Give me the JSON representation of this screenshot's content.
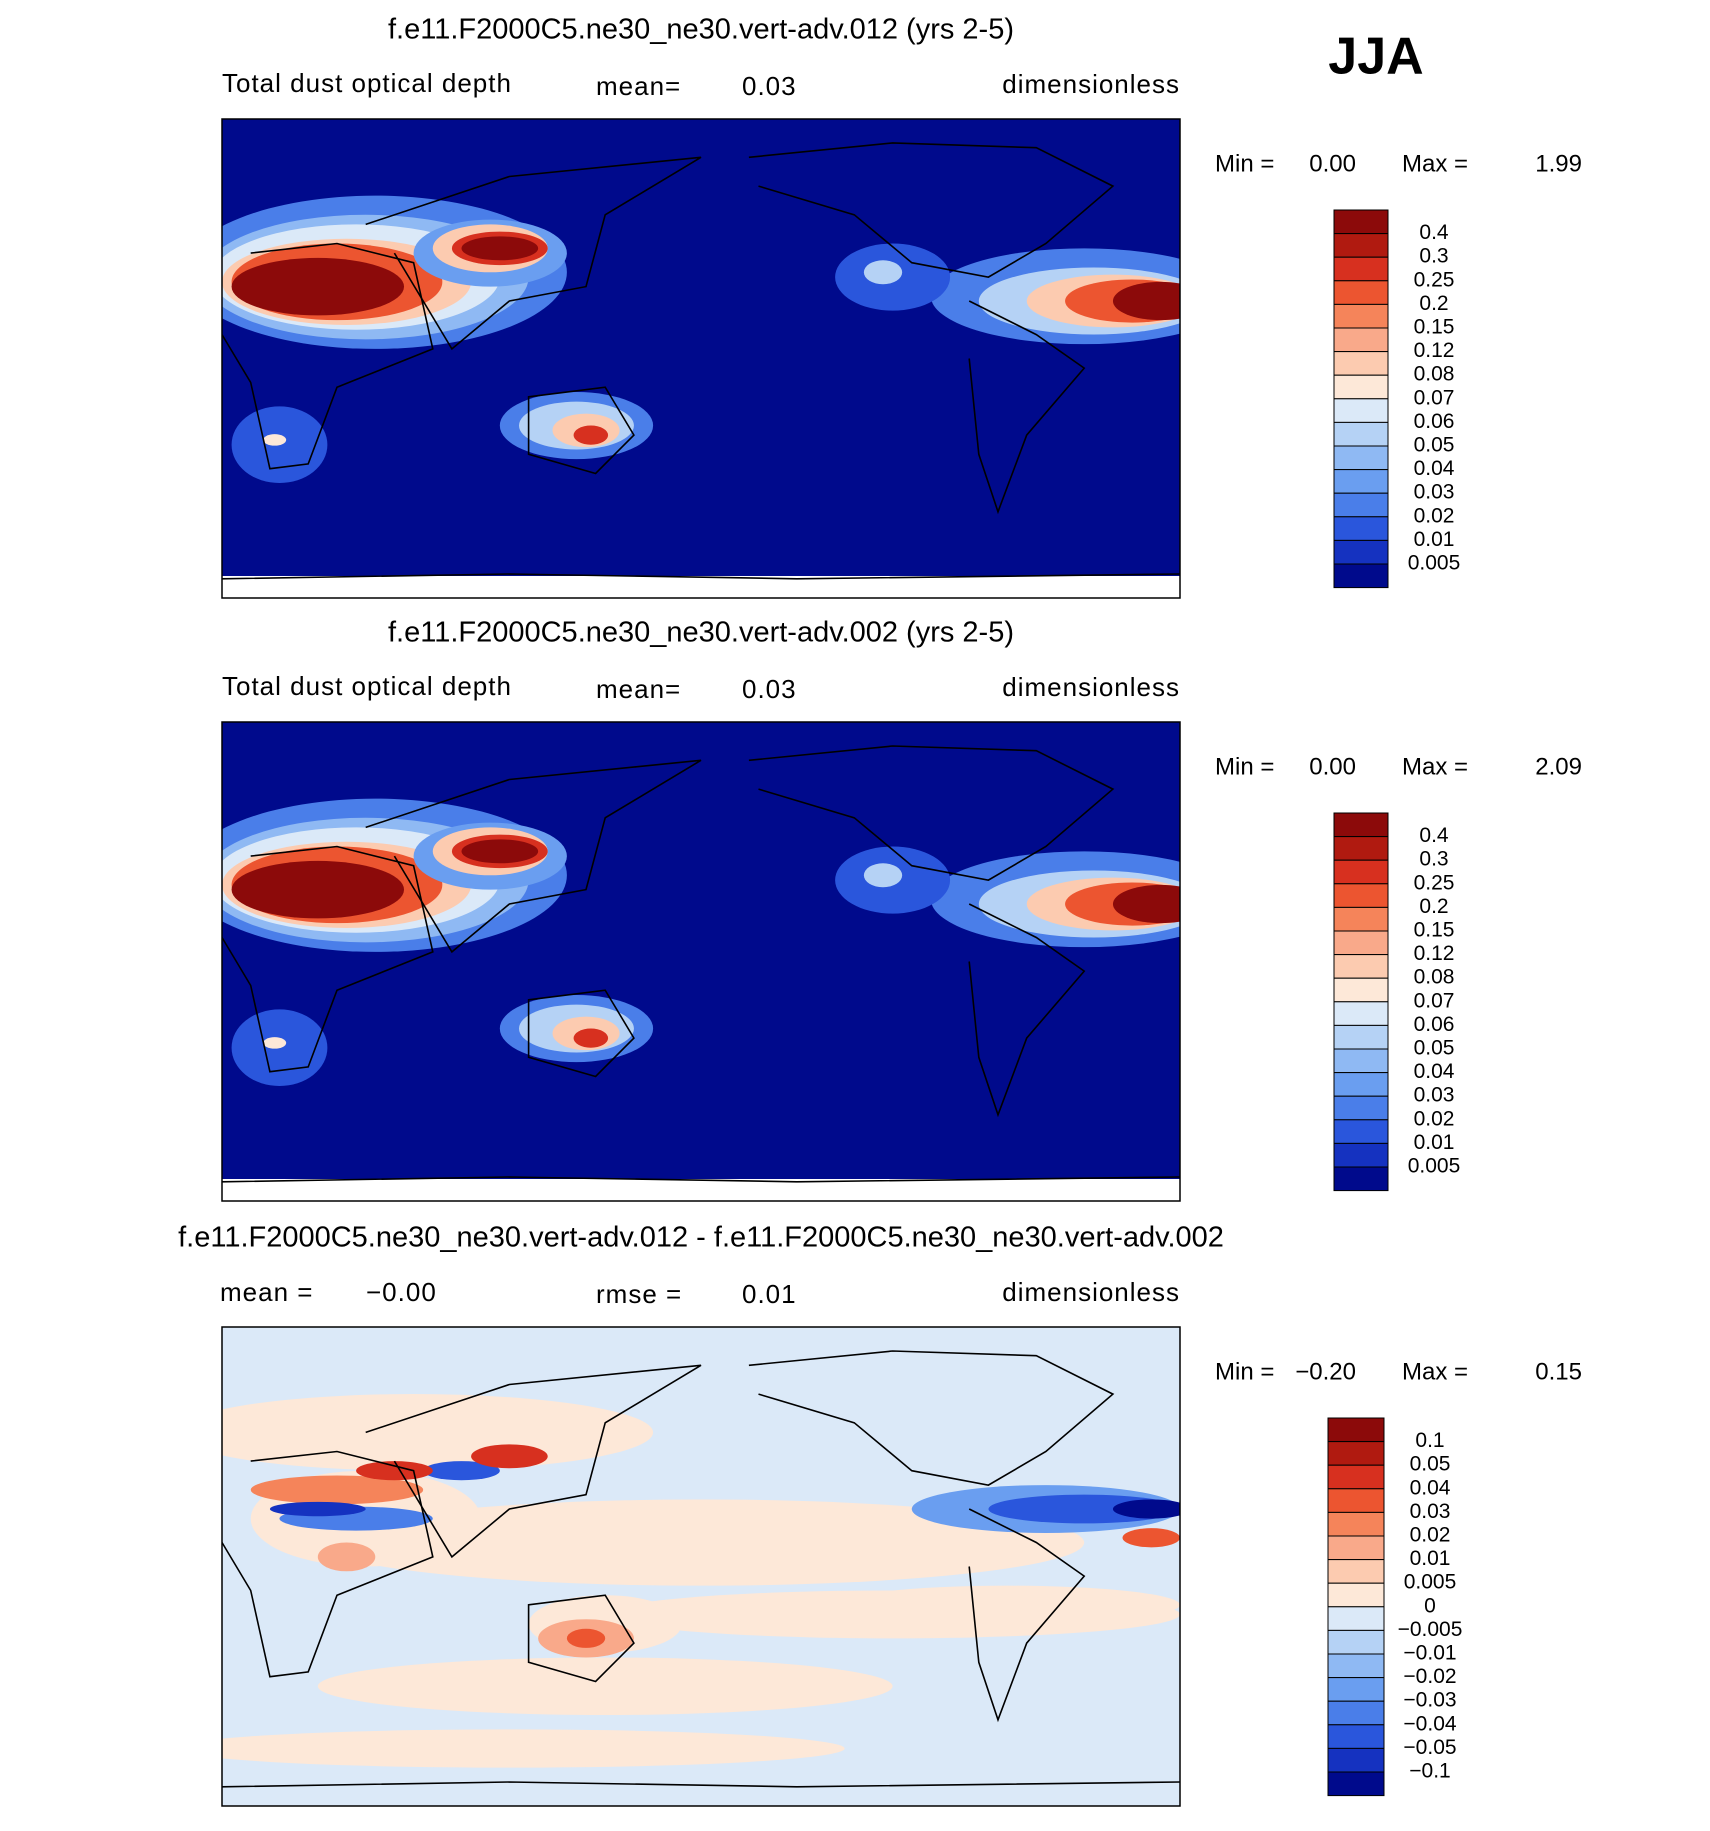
{
  "season": "JJA",
  "panels": [
    {
      "title": "f.e11.F2000C5.ne30_ne30.vert-adv.012 (yrs 2-5)",
      "left": "Total dust optical depth",
      "stat_label": "mean=",
      "stat_value": "0.03",
      "units": "dimensionless",
      "min_label": "Min =",
      "min_value": "0.00",
      "max_label": "Max =",
      "max_value": "1.99",
      "colorbar_labels": [
        "0.4",
        "0.3",
        "0.25",
        "0.2",
        "0.15",
        "0.12",
        "0.08",
        "0.07",
        "0.06",
        "0.05",
        "0.04",
        "0.03",
        "0.02",
        "0.01",
        "0.005"
      ]
    },
    {
      "title": "f.e11.F2000C5.ne30_ne30.vert-adv.002 (yrs 2-5)",
      "left": "Total dust optical depth",
      "stat_label": "mean=",
      "stat_value": "0.03",
      "units": "dimensionless",
      "min_label": "Min =",
      "min_value": "0.00",
      "max_label": "Max =",
      "max_value": "2.09",
      "colorbar_labels": [
        "0.4",
        "0.3",
        "0.25",
        "0.2",
        "0.15",
        "0.12",
        "0.08",
        "0.07",
        "0.06",
        "0.05",
        "0.04",
        "0.03",
        "0.02",
        "0.01",
        "0.005"
      ]
    },
    {
      "title": "f.e11.F2000C5.ne30_ne30.vert-adv.012 - f.e11.F2000C5.ne30_ne30.vert-adv.002",
      "left_label": "mean =",
      "left_value": "−0.00",
      "stat_label": "rmse =",
      "stat_value": "0.01",
      "units": "dimensionless",
      "min_label": "Min =",
      "min_value": "−0.20",
      "max_label": "Max =",
      "max_value": "0.15",
      "colorbar_labels": [
        "0.1",
        "0.05",
        "0.04",
        "0.03",
        "0.02",
        "0.01",
        "0.005",
        "0",
        "−0.005",
        "−0.01",
        "−0.02",
        "−0.03",
        "−0.04",
        "−0.05",
        "−0.1"
      ]
    }
  ],
  "colorbar_colors": [
    "#8c0a0a",
    "#b01a10",
    "#d7301f",
    "#ec5530",
    "#f5845a",
    "#f9a98a",
    "#fccbb0",
    "#fde8d8",
    "#dbe9f8",
    "#b5d2f5",
    "#8fb9f3",
    "#6a9ef0",
    "#4a7ee9",
    "#2a56dc",
    "#1532c0",
    "#000a8c"
  ]
}
